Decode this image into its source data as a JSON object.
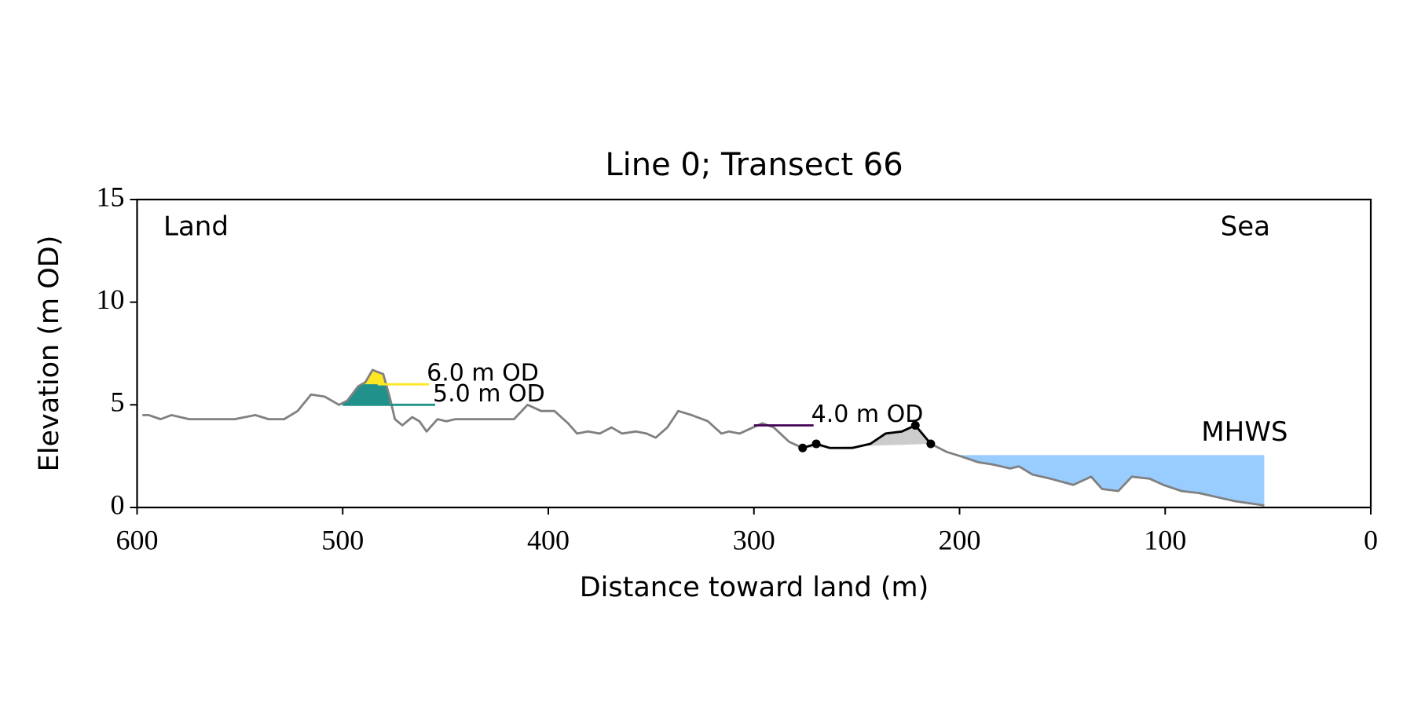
{
  "chart_data": {
    "type": "profile",
    "title": "Line 0; Transect 66",
    "x_label": "Distance toward land (m)",
    "y_label": "Elevation (m OD)",
    "annotations": {
      "left": "Land",
      "right": "Sea"
    },
    "xlim": [
      600,
      0
    ],
    "xticks": [
      600,
      500,
      400,
      300,
      200,
      100,
      0
    ],
    "ylim": [
      0,
      15
    ],
    "yticks": [
      0,
      5,
      10,
      15
    ],
    "grid": false,
    "profile": {
      "color": "#808080",
      "x": [
        597.4,
        594.3,
        588.6,
        583.3,
        574.6,
        568,
        559.2,
        552.6,
        542.5,
        536,
        528.5,
        521.9,
        515.4,
        508.8,
        501.8,
        497.8,
        492.5,
        489,
        485.5,
        480.3,
        477.2,
        474.6,
        471,
        466.2,
        462.7,
        459.2,
        453.9,
        449.6,
        445.2,
        434.2,
        416.7,
        410.1,
        403.5,
        397,
        390.4,
        386,
        380.7,
        375,
        369.3,
        364.1,
        357.5,
        352.2,
        347.8,
        342.1,
        336.8,
        330.3,
        322.4,
        315.8,
        312.3,
        307,
        302.6,
        296,
        290.4,
        282.9,
        276.3,
        269.7,
        263.2,
        252.2,
        243.4,
        236,
        228.1,
        221.5,
        214,
        206.1,
        199.6,
        190.8,
        184.2,
        175.4,
        171.1,
        164.5,
        155.7,
        144.7,
        136,
        130.7,
        122.8,
        116.2,
        107.5,
        100.9,
        92.1,
        83.4,
        74.6,
        65.8,
        51.8
      ],
      "values": [
        4.5,
        4.5,
        4.3,
        4.5,
        4.3,
        4.3,
        4.3,
        4.3,
        4.5,
        4.3,
        4.3,
        4.7,
        5.5,
        5.4,
        5.0,
        5.2,
        5.9,
        6.1,
        6.7,
        6.5,
        5.4,
        4.3,
        4.0,
        4.4,
        4.2,
        3.7,
        4.3,
        4.2,
        4.3,
        4.3,
        4.3,
        5.0,
        4.7,
        4.7,
        4.1,
        3.6,
        3.7,
        3.6,
        3.9,
        3.6,
        3.7,
        3.6,
        3.4,
        3.9,
        4.7,
        4.5,
        4.2,
        3.6,
        3.7,
        3.6,
        3.8,
        4.1,
        3.9,
        3.2,
        2.9,
        3.1,
        2.9,
        2.9,
        3.1,
        3.6,
        3.7,
        4.0,
        3.1,
        2.7,
        2.5,
        2.2,
        2.1,
        1.9,
        2.0,
        1.6,
        1.4,
        1.1,
        1.5,
        0.9,
        0.8,
        1.5,
        1.4,
        1.1,
        0.8,
        0.7,
        0.5,
        0.3,
        0.1
      ]
    },
    "dune": {
      "color": "#000000",
      "fill": "#cccccc",
      "x": [
        276.3,
        269.7,
        263.2,
        252.2,
        243.4,
        236,
        228.1,
        221.5,
        214
      ],
      "values": [
        2.9,
        3.1,
        2.9,
        2.9,
        3.1,
        3.6,
        3.7,
        4.0,
        3.1
      ],
      "markers": {
        "x": [
          276.3,
          269.7,
          221.5,
          214
        ],
        "values": [
          2.9,
          3.1,
          4.0,
          3.1
        ]
      }
    },
    "levels": [
      {
        "label": "5.0 m OD",
        "value": 5,
        "color": "#21918c",
        "x": [
          500,
          455
        ],
        "fill_x": [
          502,
          477
        ]
      },
      {
        "label": "6.0 m OD",
        "value": 6,
        "color": "#fde725",
        "x": [
          483,
          458
        ],
        "fill_x": [
          492,
          478
        ]
      },
      {
        "label": "4.0 m OD",
        "value": 4,
        "color": "#440154",
        "x": [
          300,
          271
        ]
      }
    ],
    "mhws": {
      "label": "MHWS",
      "value": 2.55,
      "color": "#99ccff",
      "label_color": "#6699cc",
      "x": [
        200,
        51.8
      ]
    }
  }
}
